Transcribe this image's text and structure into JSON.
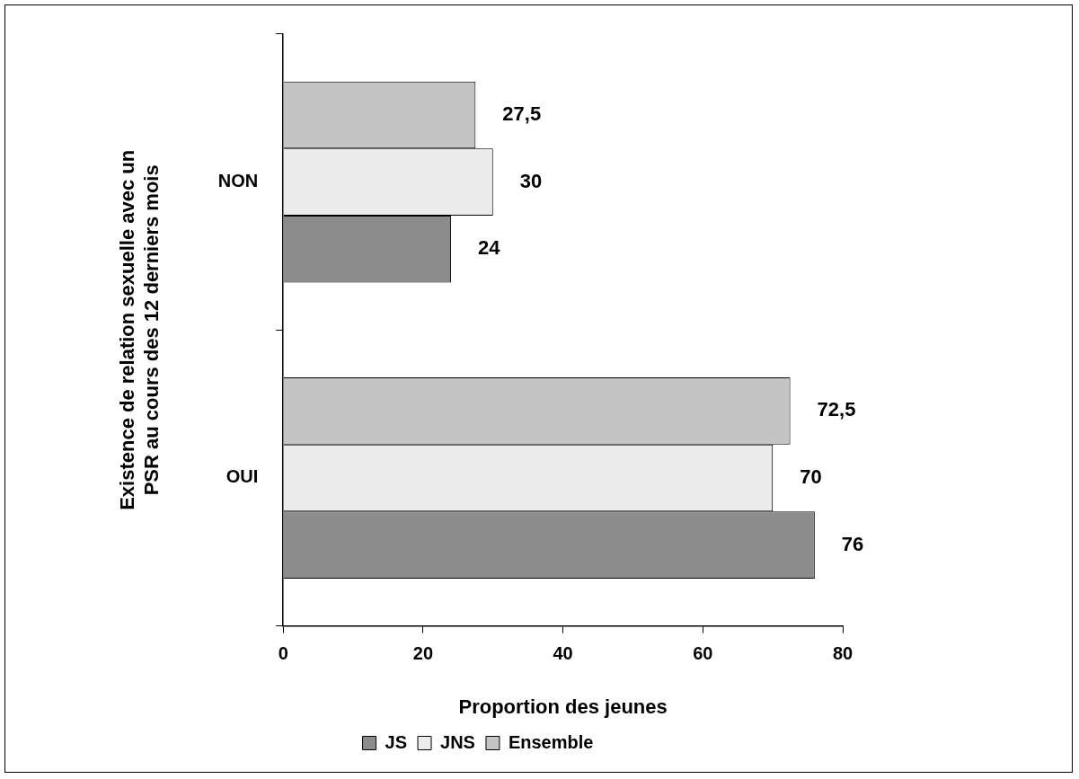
{
  "chart_data": {
    "type": "bar",
    "orientation": "horizontal",
    "xlabel": "Proportion des jeunes",
    "ylabel": "Existence de relation sexuelle avec un PSR au cours des 12 derniers mois",
    "categories": [
      "NON",
      "OUI"
    ],
    "series": [
      {
        "name": "JS",
        "color": "#8c8c8c",
        "values": [
          24,
          76
        ],
        "value_labels": [
          "24",
          "76"
        ]
      },
      {
        "name": "JNS",
        "color": "#ececec",
        "values": [
          30,
          70
        ],
        "value_labels": [
          "30",
          "70"
        ]
      },
      {
        "name": "Ensemble",
        "color": "#c4c4c4",
        "values": [
          27.5,
          72.5
        ],
        "value_labels": [
          "27,5",
          "72,5"
        ]
      }
    ],
    "xlim": [
      0,
      80
    ],
    "xticks": [
      0,
      20,
      40,
      60,
      80
    ],
    "grid": false,
    "legend": "bottom"
  }
}
